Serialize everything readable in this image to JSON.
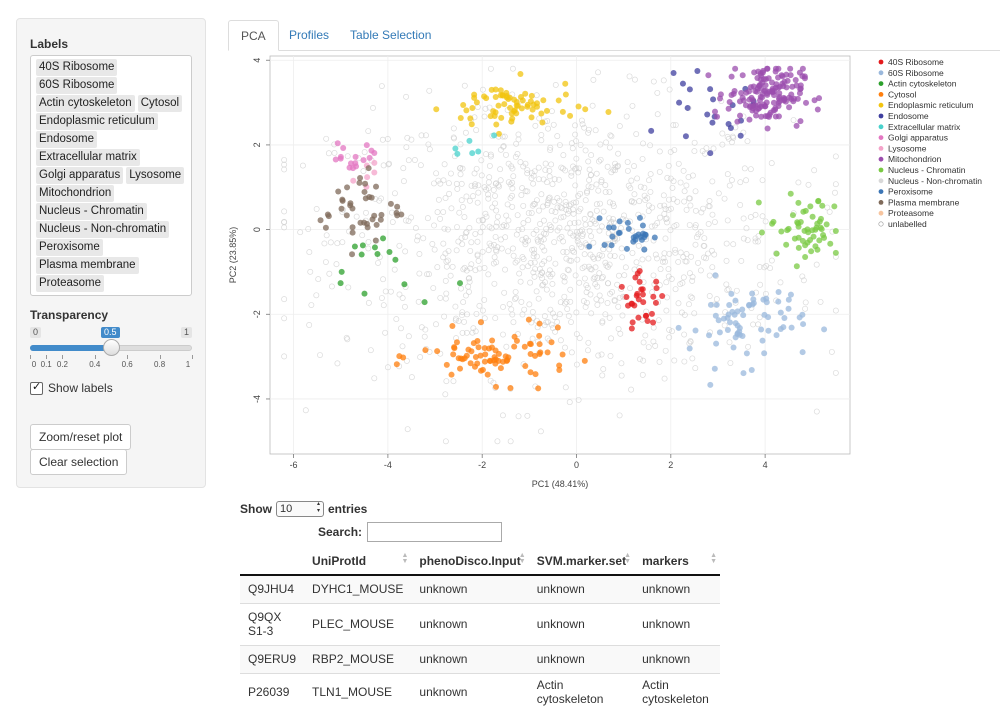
{
  "sidebar": {
    "labels_title": "Labels",
    "label_chips": [
      [
        "40S Ribosome"
      ],
      [
        "60S Ribosome"
      ],
      [
        "Actin cytoskeleton",
        "Cytosol"
      ],
      [
        "Endoplasmic reticulum"
      ],
      [
        "Endosome"
      ],
      [
        "Extracellular matrix"
      ],
      [
        "Golgi apparatus",
        "Lysosome"
      ],
      [
        "Mitochondrion"
      ],
      [
        "Nucleus - Chromatin"
      ],
      [
        "Nucleus - Non-chromatin"
      ],
      [
        "Peroxisome"
      ],
      [
        "Plasma membrane"
      ],
      [
        "Proteasome"
      ]
    ],
    "transparency_title": "Transparency",
    "slider": {
      "min": "0",
      "max": "1",
      "value": "0.5",
      "value_fraction": 0.5,
      "ticks": [
        "0",
        "0.1",
        "0.2",
        "0.4",
        "0.6",
        "0.8",
        "1"
      ]
    },
    "show_labels": "Show labels",
    "zoom_button": "Zoom/reset plot",
    "clear_button": "Clear selection"
  },
  "tabs": [
    "PCA",
    "Profiles",
    "Table Selection"
  ],
  "chart_data": {
    "type": "scatter",
    "xlabel": "PC1 (48.41%)",
    "ylabel": "PC2 (23.85%)",
    "xlim": [
      -6.5,
      5.8
    ],
    "ylim": [
      -5.3,
      4.1
    ],
    "xticks": [
      -6,
      -4,
      -2,
      0,
      2,
      4
    ],
    "yticks": [
      4,
      2,
      0,
      -2,
      -4
    ],
    "grid": true,
    "legend_position": "right",
    "series": [
      {
        "name": "40S Ribosome",
        "color": "#e41a1c",
        "center": [
          1.4,
          -1.7
        ],
        "spread": [
          0.25,
          0.3
        ],
        "n": 30
      },
      {
        "name": "60S Ribosome",
        "color": "#9ab8dc",
        "center": [
          3.6,
          -2.2
        ],
        "spread": [
          0.6,
          0.5
        ],
        "n": 70
      },
      {
        "name": "Actin cytoskeleton",
        "color": "#2ca02c",
        "center": [
          -4.1,
          -0.9
        ],
        "spread": [
          0.6,
          0.5
        ],
        "n": 14
      },
      {
        "name": "Cytosol",
        "color": "#ff7f0e",
        "center": [
          -1.7,
          -3.0
        ],
        "spread": [
          0.8,
          0.3
        ],
        "n": 80
      },
      {
        "name": "Endoplasmic reticulum",
        "color": "#f2c40f",
        "center": [
          -1.4,
          2.9
        ],
        "spread": [
          0.7,
          0.3
        ],
        "n": 70
      },
      {
        "name": "Endosome",
        "color": "#3f3f9f",
        "center": [
          2.8,
          2.7
        ],
        "spread": [
          0.5,
          0.4
        ],
        "n": 22
      },
      {
        "name": "Extracellular matrix",
        "color": "#48d1cc",
        "center": [
          -2.3,
          2.1
        ],
        "spread": [
          0.25,
          0.15
        ],
        "n": 6
      },
      {
        "name": "Golgi apparatus",
        "color": "#e377c2",
        "center": [
          -4.7,
          1.7
        ],
        "spread": [
          0.3,
          0.2
        ],
        "n": 16
      },
      {
        "name": "Lysosome",
        "color": "#f4a3c9",
        "center": [
          -4.4,
          1.3
        ],
        "spread": [
          0.3,
          0.2
        ],
        "n": 6
      },
      {
        "name": "Mitochondrion",
        "color": "#9b4dad",
        "center": [
          4.0,
          3.2
        ],
        "spread": [
          0.4,
          0.35
        ],
        "n": 150
      },
      {
        "name": "Nucleus - Chromatin",
        "color": "#7ac943",
        "center": [
          4.9,
          0.0
        ],
        "spread": [
          0.4,
          0.4
        ],
        "n": 55
      },
      {
        "name": "Nucleus - Non-chromatin",
        "color": "#d8d8d8",
        "center": [
          0.0,
          0.0
        ],
        "spread": [
          0.0,
          0.0
        ],
        "n": 0
      },
      {
        "name": "Peroxisome",
        "color": "#3b75b5",
        "center": [
          1.1,
          -0.1
        ],
        "spread": [
          0.25,
          0.2
        ],
        "n": 28
      },
      {
        "name": "Plasma membrane",
        "color": "#7f6a5a",
        "center": [
          -4.6,
          0.5
        ],
        "spread": [
          0.45,
          0.45
        ],
        "n": 40
      },
      {
        "name": "Proteasome",
        "color": "#f7c59f",
        "center": [
          0.0,
          0.0
        ],
        "spread": [
          0.0,
          0.0
        ],
        "n": 0
      },
      {
        "name": "unlabelled",
        "color": "#cccccc",
        "center": [
          -0.3,
          -0.2
        ],
        "spread": [
          2.4,
          1.6
        ],
        "n": 1100
      }
    ]
  },
  "table": {
    "show_label": "Show",
    "entries_value": "10",
    "entries_label": "entries",
    "search_label": "Search:",
    "columns": [
      "",
      "UniProtId",
      "phenoDisco.Input",
      "SVM.marker.set",
      "markers"
    ],
    "rows": [
      [
        "Q9JHU4",
        "DYHC1_MOUSE",
        "unknown",
        "unknown",
        "unknown"
      ],
      [
        "Q9QXS1-3",
        "PLEC_MOUSE",
        "unknown",
        "unknown",
        "unknown"
      ],
      [
        "Q9ERU9",
        "RBP2_MOUSE",
        "unknown",
        "unknown",
        "unknown"
      ],
      [
        "P26039",
        "TLN1_MOUSE",
        "unknown",
        "Actin cytoskeleton",
        "Actin cytoskeleton"
      ]
    ]
  }
}
